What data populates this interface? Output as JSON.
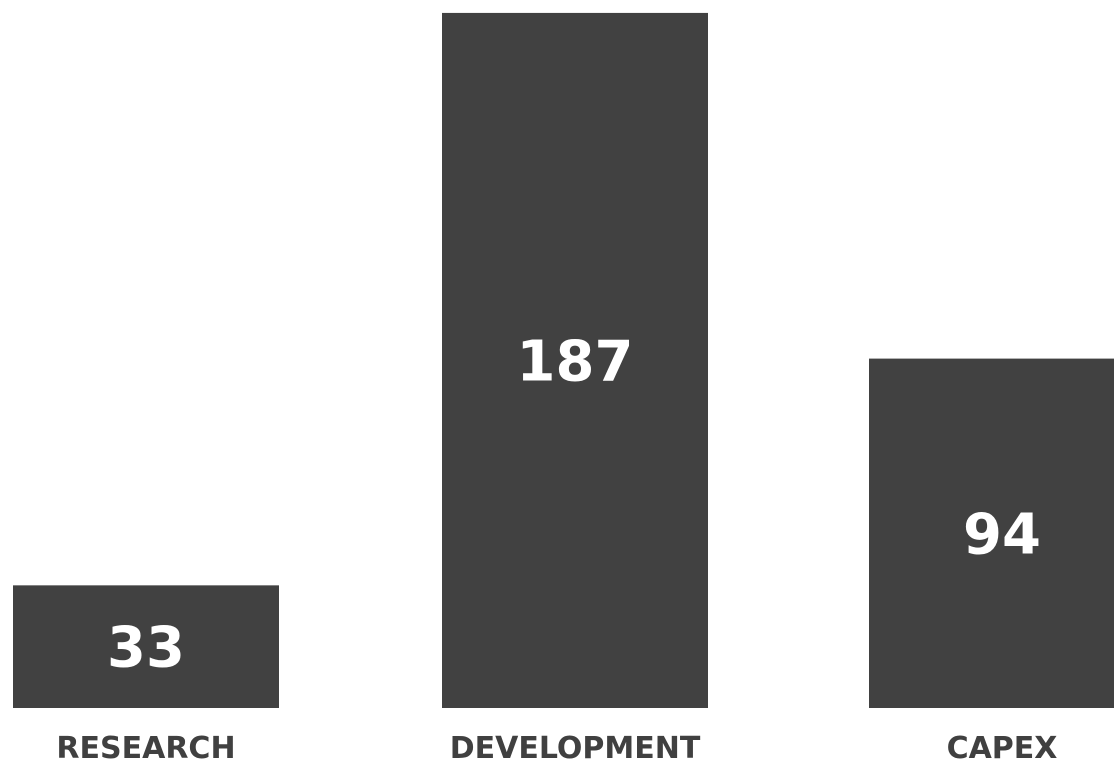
{
  "chart_data": {
    "type": "bar",
    "categories": [
      "RESEARCH",
      "DEVELOPMENT",
      "CAPEX"
    ],
    "values": [
      33,
      187,
      94
    ],
    "title": "",
    "xlabel": "",
    "ylabel": "",
    "ylim": [
      0,
      190
    ],
    "grid": false,
    "legend": "none",
    "data_labels": "inside-bar",
    "colors": {
      "bar": "#414141",
      "value_label": "#ffffff",
      "category_label": "#404040",
      "background": "#ffffff"
    }
  }
}
